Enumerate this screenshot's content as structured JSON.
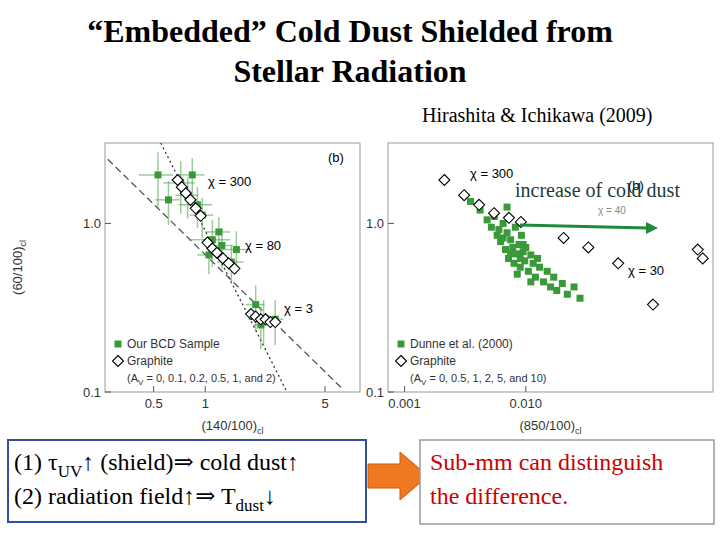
{
  "slide": {
    "title": [
      "“Embedded” Cold Dust Shielded from",
      "Stellar Radiation"
    ],
    "citation": "Hirashita & Ichikawa (2009)",
    "box_left": [
      [
        "(1) τ",
        "UV",
        "↑ (shield)⇒ cold dust↑"
      ],
      [
        "(2) radiation field↑⇒ T",
        "dust",
        "↓"
      ]
    ],
    "box_right": [
      "Sub-mm can distinguish",
      "the difference."
    ]
  },
  "chart_data": [
    {
      "type": "scatter",
      "log": true,
      "xlabel": [
        "(140/100)",
        "cl"
      ],
      "ylabel": [
        "(60/100)",
        "cl"
      ],
      "xlim": [
        0.26,
        8
      ],
      "ylim": [
        0.1,
        3
      ],
      "xticks": [
        0.5,
        1,
        5
      ],
      "yticks": [
        0.1,
        {
          "value": 1,
          "label": "1.0"
        }
      ],
      "legend": "lower left",
      "annotations": [
        "(b)",
        "χ = 300",
        "χ = 80",
        "χ = 3"
      ],
      "series": [
        {
          "type": "line",
          "line_style": "dashed",
          "color": "#555555",
          "x": [
            0.27,
            6.4
          ],
          "values": [
            2.4,
            0.103
          ]
        },
        {
          "type": "line",
          "line_style": "dotted",
          "color": "#333333",
          "x": [
            0.55,
            3.0
          ],
          "values": [
            3.0,
            0.1
          ]
        },
        {
          "name": "Our BCD Sample",
          "type": "scatter",
          "marker": "square",
          "color": "#3a9a3a",
          "x": [
            0.72,
            0.79,
            0.9,
            0.96,
            0.53,
            0.61,
            1.1,
            1.25,
            1.05,
            1.42,
            1.2,
            1.52,
            1.97,
            2.19,
            2.56,
            2.11,
            0.84
          ],
          "values": [
            1.74,
            1.47,
            1.29,
            1.12,
            1.94,
            1.38,
            0.8,
            0.74,
            0.65,
            0.59,
            0.89,
            0.7,
            0.33,
            0.27,
            0.27,
            0.25,
            1.94
          ],
          "xerr": [
            0.15,
            0.12,
            0.2,
            0.15,
            0.12,
            0.1,
            0.3,
            0.2,
            0.15,
            0.25,
            0.2,
            0.3,
            0.25,
            0.4,
            0.3,
            0.2,
            0.15
          ],
          "yerr": [
            0.6,
            0.4,
            0.35,
            0.3,
            0.7,
            0.4,
            0.25,
            0.2,
            0.15,
            0.15,
            0.2,
            0.2,
            0.1,
            0.08,
            0.08,
            0.07,
            0.5
          ]
        },
        {
          "name": "Graphite",
          "note": [
            "(A",
            "V",
            " = 0, 0.1, 0.2, 0.5, 1, and 2)"
          ],
          "type": "scatter",
          "marker": "diamond",
          "color": "#000000",
          "x": [
            0.69,
            0.73,
            0.77,
            0.82,
            0.88,
            0.94,
            1.03,
            1.1,
            1.17,
            1.27,
            1.37,
            1.48,
            1.85,
            1.97,
            2.11,
            2.25,
            2.4,
            2.56
          ],
          "values": [
            1.81,
            1.64,
            1.51,
            1.38,
            1.23,
            1.11,
            0.77,
            0.71,
            0.67,
            0.62,
            0.58,
            0.54,
            0.29,
            0.28,
            0.27,
            0.27,
            0.26,
            0.26
          ]
        }
      ]
    },
    {
      "type": "scatter",
      "log": true,
      "xlabel": [
        "(850/100)",
        "cl"
      ],
      "xlim": [
        0.00073,
        0.35
      ],
      "ylim": [
        0.1,
        3
      ],
      "xticks": [
        0.001,
        {
          "value": 0.01,
          "label": "0.010"
        }
      ],
      "yticks": [
        0.1,
        {
          "value": 1,
          "label": "1.0"
        }
      ],
      "legend": "lower left",
      "annotations": [
        "(b)",
        "χ = 300",
        "χ = 40",
        "χ = 30",
        "increase of cold dust"
      ],
      "series": [
        {
          "name": "Dunne et al. (2000)",
          "type": "scatter",
          "marker": "square",
          "color": "#3a9a3a",
          "x": [
            0.0035,
            0.0042,
            0.0048,
            0.0052,
            0.0055,
            0.0058,
            0.006,
            0.0062,
            0.0065,
            0.0068,
            0.007,
            0.0072,
            0.0075,
            0.0078,
            0.008,
            0.0082,
            0.0085,
            0.0088,
            0.009,
            0.0092,
            0.0095,
            0.0098,
            0.01,
            0.0105,
            0.011,
            0.0115,
            0.012,
            0.0125,
            0.013,
            0.014,
            0.015,
            0.016,
            0.017,
            0.018,
            0.02,
            0.022,
            0.025,
            0.028,
            0.0065,
            0.0075,
            0.0085,
            0.0095,
            0.011,
            0.009,
            0.007
          ],
          "values": [
            1.35,
            1.2,
            1.05,
            0.95,
            1.1,
            0.85,
            0.92,
            0.78,
            1.0,
            0.7,
            0.88,
            0.62,
            0.8,
            0.72,
            0.58,
            0.95,
            0.66,
            0.75,
            0.55,
            0.85,
            0.68,
            0.6,
            0.72,
            0.52,
            0.65,
            0.58,
            0.48,
            0.62,
            0.55,
            0.45,
            0.52,
            0.42,
            0.48,
            0.4,
            0.44,
            0.38,
            0.42,
            0.36,
            0.82,
            0.66,
            0.5,
            0.75,
            0.45,
            0.62,
            1.25
          ]
        },
        {
          "name": "Graphite",
          "note": [
            "(A",
            "V",
            " = 0, 0.5, 1, 2, 5, and 10)"
          ],
          "type": "scatter",
          "marker": "diamond",
          "color": "#000000",
          "x": [
            0.00213,
            0.0031,
            0.00412,
            0.00547,
            0.00726,
            0.0091,
            0.0205,
            0.0328,
            0.0578,
            0.112,
            0.262,
            0.288
          ],
          "values": [
            1.81,
            1.47,
            1.29,
            1.15,
            1.08,
            1.02,
            0.82,
            0.72,
            0.58,
            0.33,
            0.7,
            0.62
          ]
        }
      ]
    }
  ]
}
